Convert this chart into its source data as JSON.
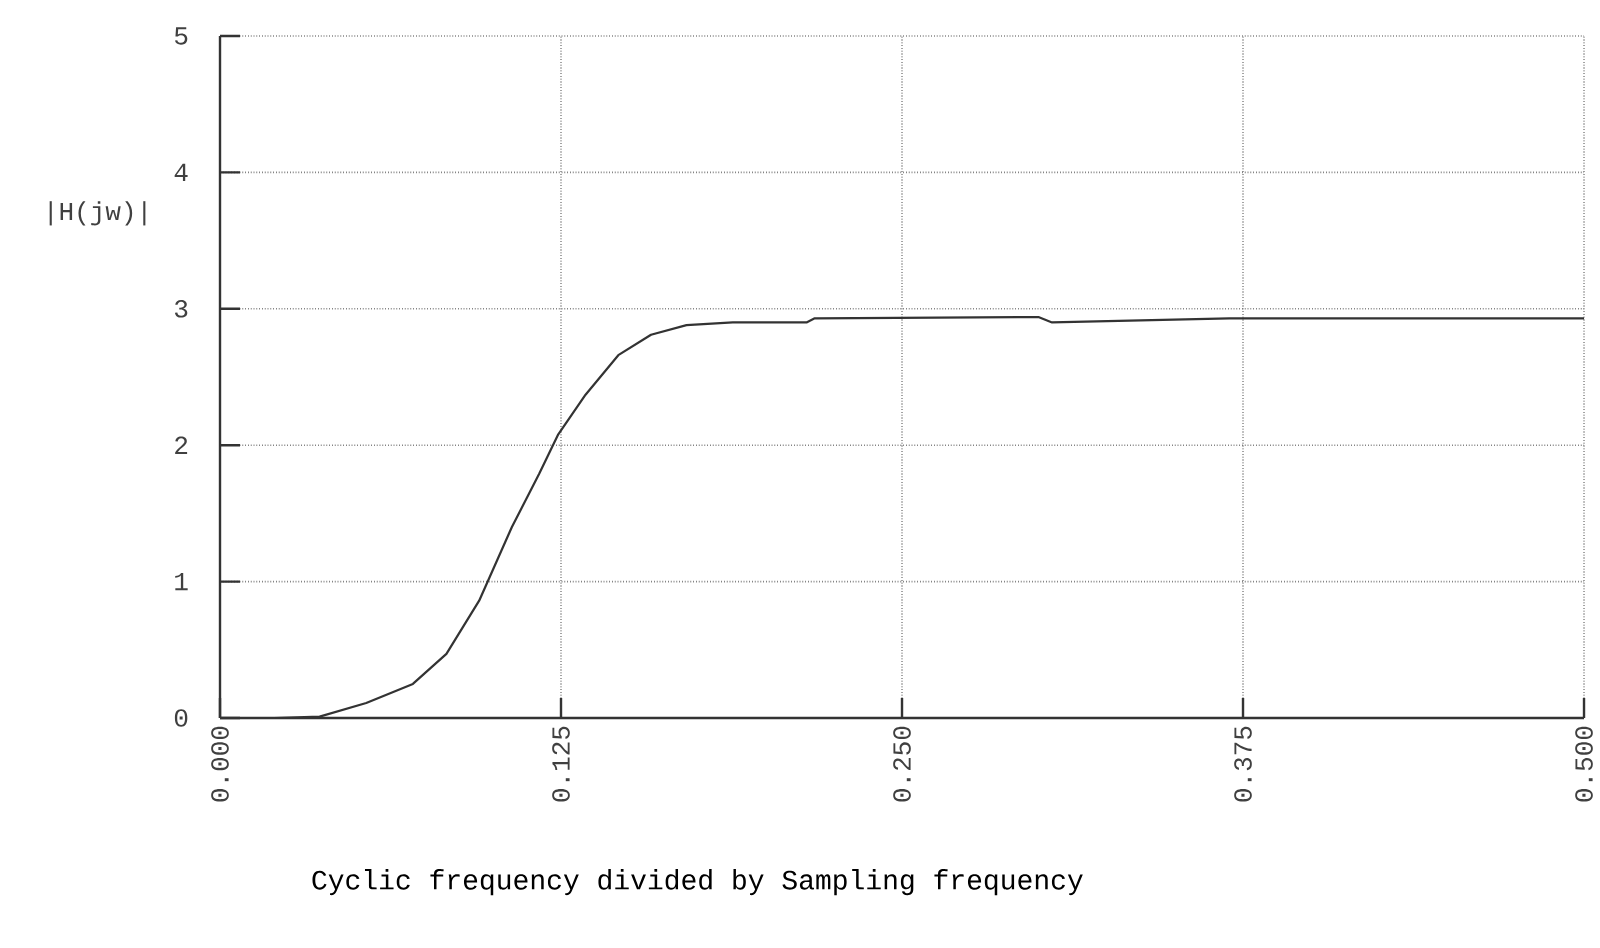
{
  "chart_data": {
    "type": "line",
    "xlabel": "Cyclic frequency divided by Sampling frequency",
    "ylabel": "|H(jw)|",
    "x": [
      0,
      0.02,
      0.0365,
      0.0536,
      0.0707,
      0.083,
      0.095,
      0.107,
      0.117,
      0.124,
      0.134,
      0.146,
      0.158,
      0.171,
      0.188,
      0.215,
      0.218,
      0.3,
      0.305,
      0.37,
      0.5
    ],
    "series": [
      {
        "color": "#333333",
        "values": [
          0,
          0,
          0.01,
          0.11,
          0.25,
          0.47,
          0.86,
          1.4,
          1.79,
          2.08,
          2.37,
          2.66,
          2.81,
          2.88,
          2.9,
          2.9,
          2.93,
          2.94,
          2.9,
          2.93,
          2.93
        ]
      }
    ],
    "xlim": [
      0,
      0.5
    ],
    "ylim": [
      0,
      5
    ],
    "xticks": [
      {
        "value": 0,
        "label": "0.000"
      },
      {
        "value": 0.125,
        "label": "0.125"
      },
      {
        "value": 0.25,
        "label": "0.250"
      },
      {
        "value": 0.375,
        "label": "0.375"
      },
      {
        "value": 0.5,
        "label": "0.500"
      }
    ],
    "yticks": [
      0,
      1,
      2,
      3,
      4,
      5
    ],
    "grid": true,
    "line_style": "solid"
  }
}
